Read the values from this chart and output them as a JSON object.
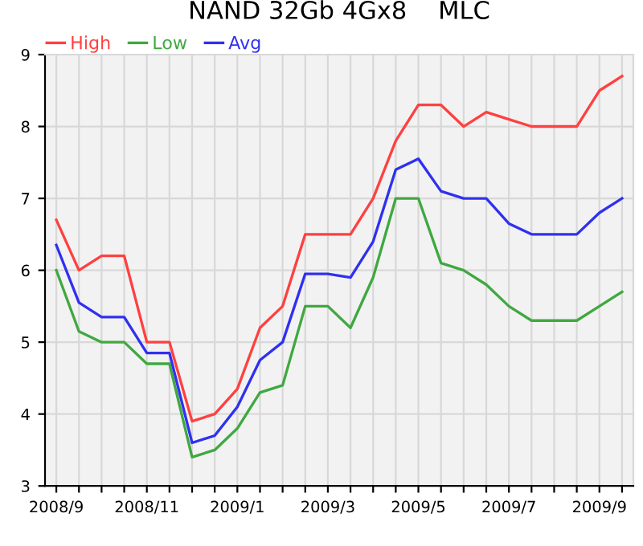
{
  "chart_data": {
    "type": "line",
    "title": "NAND 32Gb 4Gx8    MLC",
    "categories": [
      "2008/9",
      null,
      null,
      null,
      "2008/11",
      null,
      null,
      null,
      "2009/1",
      null,
      null,
      null,
      "2009/3",
      null,
      null,
      null,
      "2009/5",
      null,
      null,
      null,
      "2009/7",
      null,
      null,
      null,
      "2009/9",
      null
    ],
    "series": [
      {
        "name": "High",
        "color": "#ff4040",
        "values": [
          6.7,
          6.0,
          6.2,
          6.2,
          5.0,
          5.0,
          3.9,
          4.0,
          4.35,
          5.2,
          5.5,
          6.5,
          6.5,
          6.5,
          7.0,
          7.8,
          8.3,
          8.3,
          8.0,
          8.2,
          8.1,
          8.0,
          8.0,
          8.0,
          8.5,
          8.7
        ]
      },
      {
        "name": "Low",
        "color": "#40a840",
        "values": [
          6.0,
          5.15,
          5.0,
          5.0,
          4.7,
          4.7,
          3.4,
          3.5,
          3.8,
          4.3,
          4.4,
          5.5,
          5.5,
          5.2,
          5.9,
          7.0,
          7.0,
          6.1,
          6.0,
          5.8,
          5.5,
          5.3,
          5.3,
          5.3,
          5.5,
          5.7
        ]
      },
      {
        "name": "Avg",
        "color": "#3030f0",
        "values": [
          6.35,
          5.55,
          5.35,
          5.35,
          4.85,
          4.85,
          3.6,
          3.7,
          4.1,
          4.75,
          5.0,
          5.95,
          5.95,
          5.9,
          6.4,
          7.4,
          7.55,
          7.1,
          7.0,
          7.0,
          6.65,
          6.5,
          6.5,
          6.5,
          6.8,
          7.0
        ]
      }
    ],
    "ylim": [
      3,
      9
    ],
    "yticks": [
      3,
      4,
      5,
      6,
      7,
      8,
      9
    ],
    "grid": true,
    "legend": "top left",
    "marker": "none",
    "line_style": "solid"
  }
}
